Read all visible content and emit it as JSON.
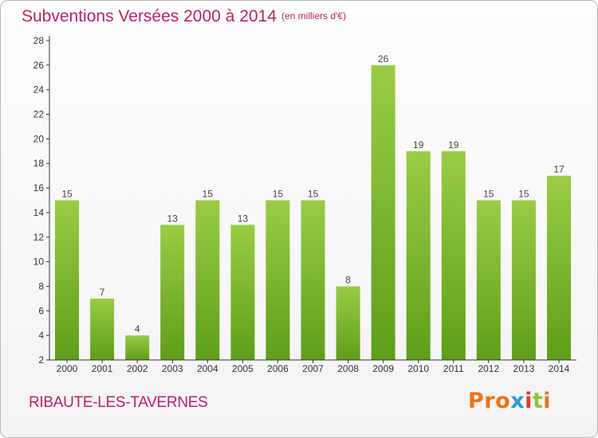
{
  "header": {
    "title": "Subventions Versées 2000 à 2014",
    "unit": "(en milliers d'€)"
  },
  "footer": {
    "town": "RIBAUTE-LES-TAVERNES",
    "logo_text": "Proxiti",
    "logo_colors": [
      "#e8731a",
      "#e8731a",
      "#e8731a",
      "#2b9ad8",
      "#e03a2e",
      "#8dc63f",
      "#e8731a"
    ]
  },
  "chart_data": {
    "type": "bar",
    "title": "Subventions Versées 2000 à 2014",
    "subtitle": "(en milliers d'€)",
    "categories": [
      "2000",
      "2001",
      "2002",
      "2003",
      "2004",
      "2005",
      "2006",
      "2007",
      "2008",
      "2009",
      "2010",
      "2011",
      "2012",
      "2013",
      "2014"
    ],
    "values": [
      15,
      7,
      4,
      13,
      15,
      13,
      15,
      15,
      8,
      26,
      19,
      19,
      15,
      15,
      17
    ],
    "ylim": [
      2,
      28
    ],
    "yticks": [
      2,
      4,
      6,
      8,
      10,
      12,
      14,
      16,
      18,
      20,
      22,
      24,
      26,
      28
    ],
    "grid": false,
    "bar_color_top": "#99cc44",
    "bar_color_bottom": "#5e9e1a",
    "axis_color": "#333333"
  }
}
